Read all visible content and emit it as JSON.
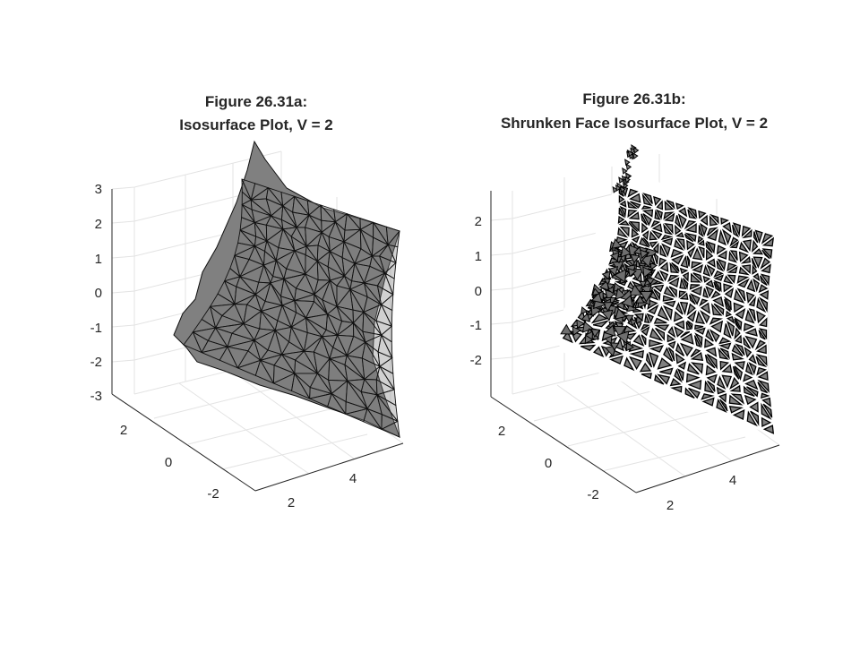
{
  "figure": {
    "background": "#ffffff"
  },
  "chart_data": [
    {
      "type": "isosurface",
      "title_line1": "Figure 26.31a:",
      "title_line2": "Isosurface Plot, V = 2",
      "isovalue": 2,
      "face_color": "#808080",
      "edge_color": "#000000",
      "shrunken_faces": false,
      "z_ticks": [
        "3",
        "2",
        "1",
        "0",
        "-1",
        "-2",
        "-3"
      ],
      "y_ticks": [
        "2",
        "0",
        "-2"
      ],
      "x_ticks": [
        "2",
        "4"
      ],
      "grid": true,
      "view": "3d"
    },
    {
      "type": "isosurface",
      "title_line1": "Figure 26.31b:",
      "title_line2": "Shrunken Face Isosurface Plot, V = 2",
      "isovalue": 2,
      "face_color": "#808080",
      "edge_color": "#000000",
      "shrunken_faces": true,
      "z_ticks": [
        "2",
        "1",
        "0",
        "-1",
        "-2"
      ],
      "y_ticks": [
        "2",
        "0",
        "-2"
      ],
      "x_ticks": [
        "2",
        "4"
      ],
      "grid": true,
      "view": "3d"
    }
  ]
}
